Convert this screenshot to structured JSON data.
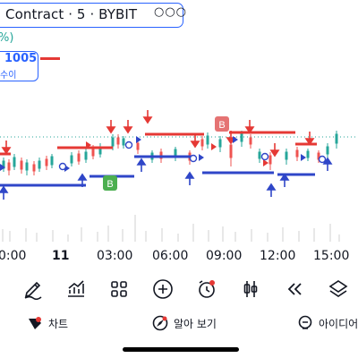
{
  "header": {
    "title": "Contract · 5 · BYBIT",
    "more": "○○○",
    "change_pct": "%)",
    "price_value": "1005",
    "price_sub": "수이"
  },
  "chart": {
    "b_label": "B",
    "accent_red": "#e53935",
    "accent_blue": "#2f46c8",
    "accent_green": "#4caf50",
    "accent_teal": "#26a69a"
  },
  "time_axis": {
    "labels": [
      "0:00",
      "11",
      "03:00",
      "06:00",
      "09:00",
      "12:00",
      "15:00"
    ]
  },
  "toolbar": {
    "tools": [
      "draw-icon",
      "indicators-icon",
      "layouts-icon",
      "add-icon",
      "alert-icon",
      "chart-type-icon",
      "replay-icon",
      "layers-icon"
    ]
  },
  "nav": {
    "chart_label": "차트",
    "learn_label": "알아 보기",
    "ideas_label": "아이디어"
  }
}
